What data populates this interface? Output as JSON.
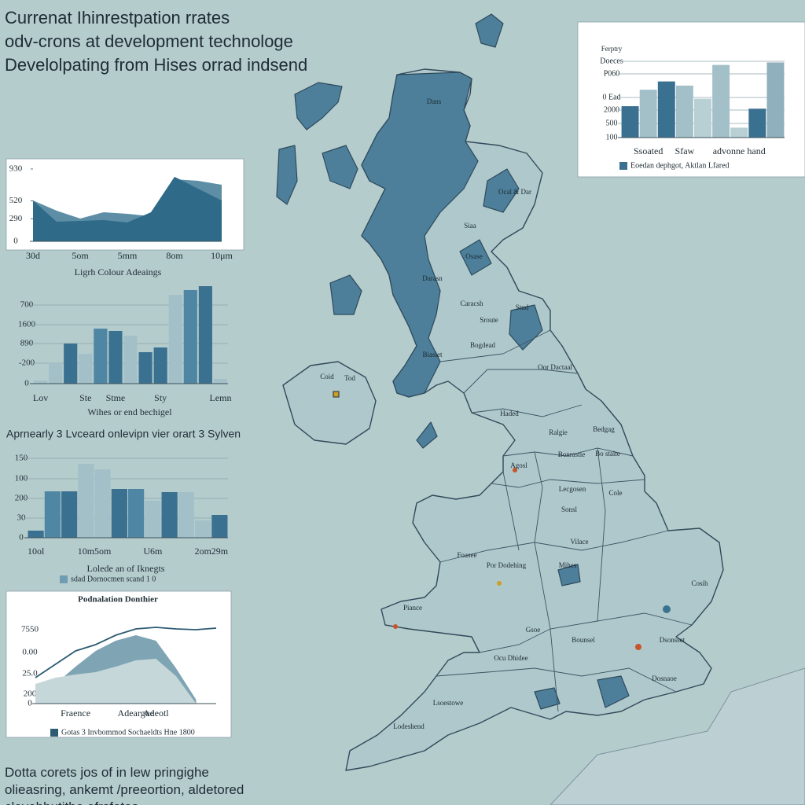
{
  "header": {
    "title_lines": [
      "Currenat Ihinrestpation rrates",
      "odv-crons at development technologe",
      "Develolpating from Hises orrad indsend"
    ]
  },
  "chart_data": [
    {
      "type": "bar",
      "ylabel": "Ferptry",
      "y_axis_labels": [
        "100",
        "500",
        "2000",
        "0 Ead",
        "P060",
        "Doeces"
      ],
      "ylim": [
        0,
        100
      ],
      "grid": true,
      "categories": [
        null,
        "Ssoated",
        null,
        "Sfaw",
        null,
        null,
        "advonne hand",
        null,
        null
      ],
      "values": [
        38,
        58,
        68,
        63,
        47,
        88,
        12,
        35,
        91
      ],
      "colors": [
        "#3b7190",
        "#a3c0c8",
        "#3b7190",
        "#a3c0c8",
        "#b8cfd4",
        "#a3c0c8",
        "#b8cfd4",
        "#3b7190",
        "#8fb0bc"
      ],
      "legend": {
        "text": "Eoedan  dephgot,  Aktlan Lfared",
        "color": "#3b7190"
      }
    },
    {
      "type": "area",
      "subtitle": "Ligrh  Colour  Adeaings",
      "ylim": [
        0,
        1000
      ],
      "yticks": [
        0,
        290,
        520,
        930
      ],
      "categories": [
        "30d",
        null,
        "5om",
        null,
        "5mm",
        null,
        "8om",
        null,
        "10μm"
      ],
      "series": [
        {
          "style": "area",
          "color": "#5d8ea6",
          "values": [
            525,
            394,
            293,
            374,
            354,
            323,
            798,
            778,
            727
          ]
        },
        {
          "style": "area",
          "color": "#2f6a88",
          "values": [
            525,
            253,
            263,
            273,
            243,
            374,
            829,
            677,
            525
          ]
        }
      ]
    },
    {
      "type": "bar",
      "subtitle": "Wihes  or  end  bechigel",
      "y_axis_labels": [
        "0",
        "-200",
        "890",
        "1600",
        "700"
      ],
      "ylim": [
        0,
        125
      ],
      "grid": true,
      "categories": [
        "Lov",
        null,
        null,
        "Ste",
        null,
        "Stme",
        null,
        null,
        "Sty",
        null,
        null,
        null,
        "Lemn"
      ],
      "values": [
        4,
        26,
        51,
        38,
        70,
        67,
        61,
        40,
        46,
        113,
        119,
        124,
        6
      ],
      "colors": [
        "#a3c0c8",
        "#a3c0c8",
        "#3b7190",
        "#a3c0c8",
        "#4f86a3",
        "#3b7190",
        "#a3c0c8",
        "#3b7190",
        "#3b7190",
        "#a3c0c8",
        "#4f86a3",
        "#3b7190",
        "#a3c0c8"
      ]
    },
    {
      "type": "bar",
      "title": "Aprnearly 3 Lvceard onlevipn vier orart 3 Sylven",
      "subtitle": "Lolede an of Iknegts",
      "y_axis_labels": [
        "0",
        "30",
        "200",
        "100",
        "150"
      ],
      "ylim": [
        0,
        100
      ],
      "grid": true,
      "categories": [
        "10ol",
        null,
        null,
        "10m",
        "5om",
        null,
        null,
        "U6m",
        null,
        null,
        "2om",
        "29m"
      ],
      "values": [
        9,
        59,
        59,
        94,
        87,
        62,
        62,
        47,
        58,
        58,
        22,
        29
      ],
      "colors": [
        "#3b7190",
        "#4f86a3",
        "#3b7190",
        "#a3c0c8",
        "#a3c0c8",
        "#3b7190",
        "#4f86a3",
        "#a3c0c8",
        "#3b7190",
        "#a3c0c8",
        "#a3c0c8",
        "#3b7190"
      ],
      "legend": {
        "text": "sdad  Dornocmen  scand  1 0",
        "color": "#6f9cb0"
      }
    },
    {
      "type": "line",
      "title": "Podnalation Donthier",
      "y_axis_labels": [
        "0",
        "200",
        "25.0",
        "0.00",
        "7550"
      ],
      "ylim": [
        0,
        100
      ],
      "categories": [
        null,
        null,
        "Fraence",
        null,
        null,
        "Adeargue",
        "Adeotl",
        null,
        null,
        null
      ],
      "series": [
        {
          "style": "area",
          "color": "#7fa5b4",
          "values": [
            10,
            25,
            47,
            67,
            80,
            87,
            80,
            45,
            5,
            null
          ]
        },
        {
          "style": "area",
          "color": "#c6d7da",
          "values": [
            25,
            33,
            37,
            40,
            47,
            55,
            57,
            35,
            0,
            null
          ]
        },
        {
          "style": "line",
          "color": "#2c5b72",
          "values": [
            33,
            50,
            67,
            75,
            87,
            95,
            97,
            95,
            94,
            96
          ]
        }
      ],
      "legend": {
        "text": "Gotas 3 Invbommod Sochaeldts Hne 1800",
        "color": "#2c5b72"
      }
    }
  ],
  "map": {
    "labels": [
      "Dans",
      "Ocal & Dar",
      "Siaa",
      "Osase",
      "Darasn",
      "Caracsh",
      "Stud",
      "Sroute",
      "Bogdead",
      "Biaslet",
      "Oor Dactaal",
      "Coid",
      "Tod",
      "Haded",
      "Ralgie",
      "Bedgag",
      "Bonrastie",
      "Bo staite",
      "Agosl",
      "Lecgosen",
      "Cole",
      "Sonsl",
      "Vilace",
      "Foasee",
      "Por Dodehing",
      "Mihes",
      "Cosih",
      "Piance",
      "Gsoe",
      "Bounsel",
      "Ocu Dhidee",
      "Dsonsset",
      "Dosnaoe",
      "Lsoestowe",
      "Lodeshend"
    ]
  },
  "footer": {
    "lines": [
      "Dotta corets jos of in lew pringighe",
      "olieasring, ankemt /preeortion, aldetored",
      "clevehbutitbe efrsfotes"
    ]
  }
}
